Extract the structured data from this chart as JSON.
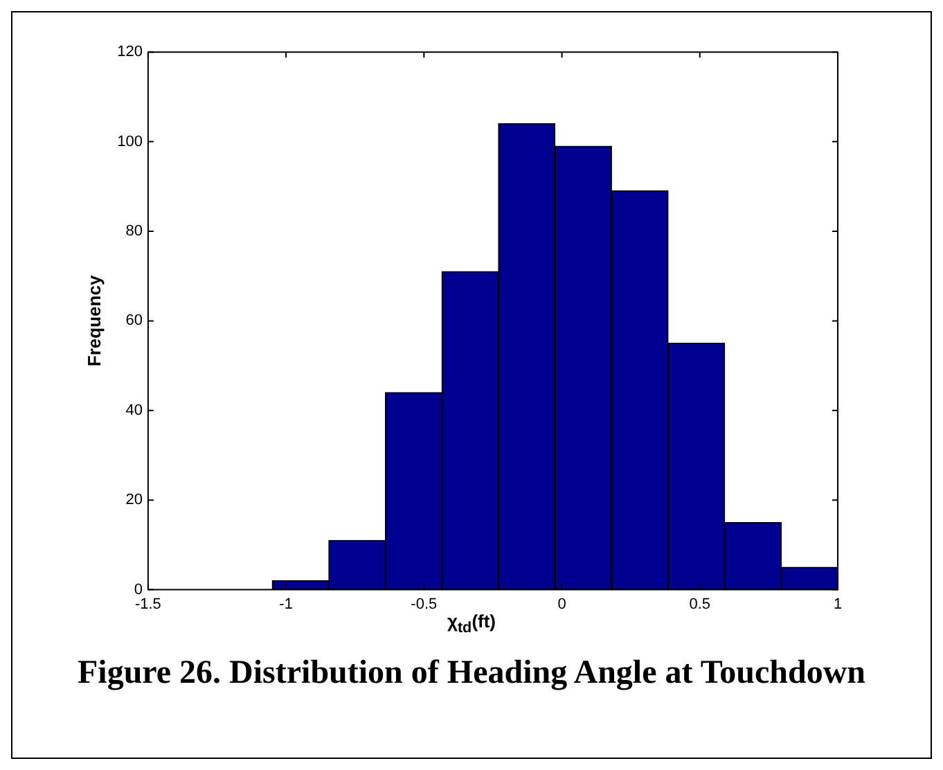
{
  "chart_data": {
    "type": "histogram",
    "title": "Figure 26. Distribution of Heading Angle at Touchdown",
    "xlabel": "χ$_{td}$(ft)",
    "ylabel": "Frequency",
    "bins": [
      -1.05,
      -0.845,
      -0.64,
      -0.435,
      -0.23,
      -0.025,
      0.18,
      0.385,
      0.59,
      0.795,
      1.0
    ],
    "values": [
      2,
      11,
      44,
      71,
      104,
      99,
      89,
      55,
      15,
      5
    ],
    "color": "#000090",
    "xlim": [
      -1.5,
      1
    ],
    "xticks": [
      -1.5,
      -1,
      -0.5,
      0,
      0.5,
      1
    ],
    "ylim": [
      0,
      120
    ],
    "yticks": [
      0,
      20,
      40,
      60,
      80,
      100,
      120
    ],
    "grid": false
  }
}
